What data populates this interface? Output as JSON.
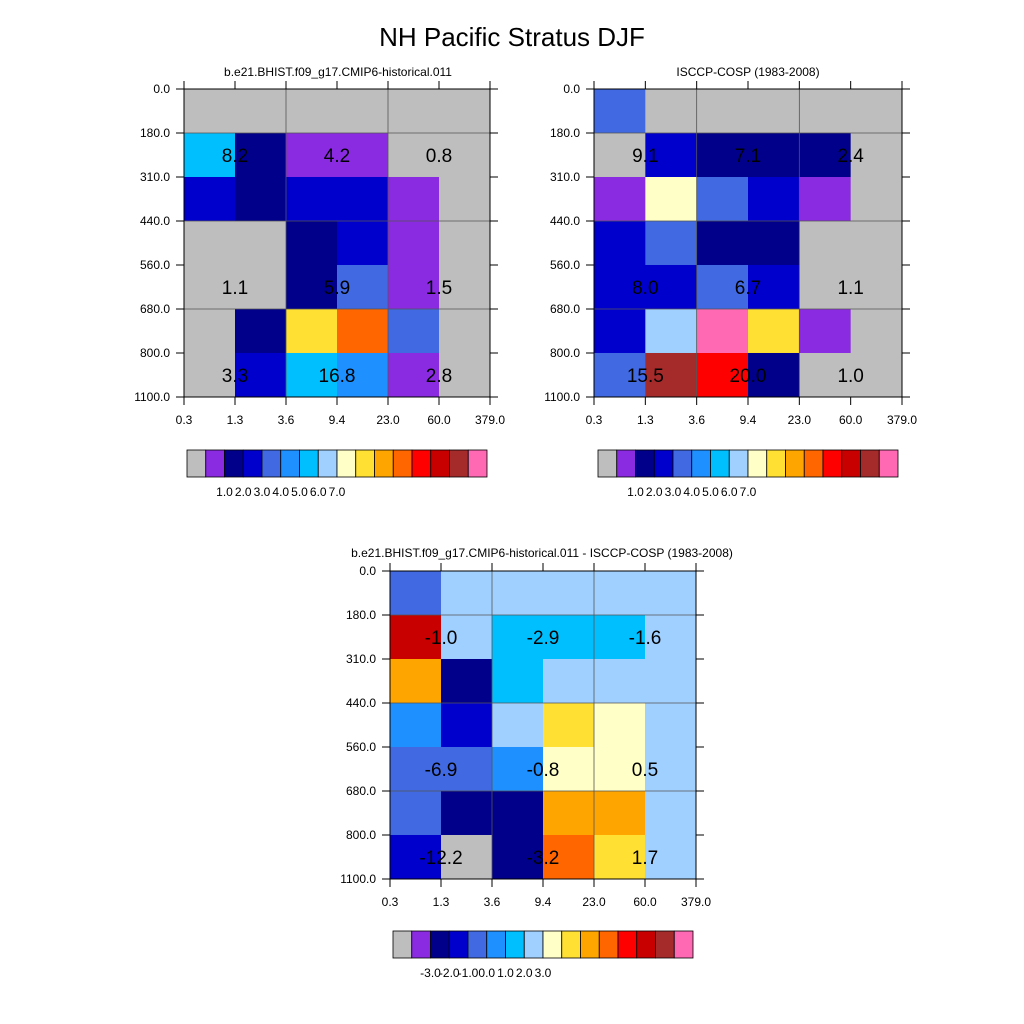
{
  "figure": {
    "title": "NH Pacific Stratus DJF"
  },
  "palette": {
    "gray": "#bebebe",
    "violet": "#8a2be2",
    "navy": "#00008b",
    "medium_blue": "#0000cd",
    "royal_blue": "#4169e1",
    "dodger_blue": "#1e90ff",
    "deep_sky_blue": "#00bfff",
    "light_sky_blue": "#a0d0ff",
    "light_yellow": "#ffffc8",
    "gold": "#ffe033",
    "orange": "#ffa500",
    "dark_orange": "#ff6600",
    "red": "#ff0000",
    "dark_red": "#c80000",
    "brown": "#a52a2a",
    "hot_pink": "#ff69b4"
  },
  "chart_data": [
    {
      "type": "heatmap",
      "id": "model",
      "title": "b.e21.BHIST.f09_g17.CMIP6-historical.011",
      "x_tick_labels": [
        "0.3",
        "1.3",
        "3.6",
        "9.4",
        "23.0",
        "60.0",
        "379.0"
      ],
      "y_tick_labels": [
        "0.0",
        "180.0",
        "310.0",
        "440.0",
        "560.0",
        "680.0",
        "800.0",
        "1100.0"
      ],
      "cells": [
        [
          "gray",
          "gray",
          "gray",
          "gray",
          "gray",
          "gray"
        ],
        [
          "deep_sky_blue",
          "navy",
          "violet",
          "violet",
          "gray",
          "gray"
        ],
        [
          "medium_blue",
          "navy",
          "medium_blue",
          "medium_blue",
          "violet",
          "gray"
        ],
        [
          "gray",
          "gray",
          "navy",
          "medium_blue",
          "violet",
          "gray"
        ],
        [
          "gray",
          "gray",
          "navy",
          "royal_blue",
          "violet",
          "gray"
        ],
        [
          "gray",
          "navy",
          "gold",
          "dark_orange",
          "royal_blue",
          "gray"
        ],
        [
          "gray",
          "medium_blue",
          "deep_sky_blue",
          "dodger_blue",
          "violet",
          "gray"
        ]
      ],
      "labels": [
        {
          "text": "8.2",
          "row": 1,
          "col": 0
        },
        {
          "text": "4.2",
          "row": 1,
          "col": 2
        },
        {
          "text": "0.8",
          "row": 1,
          "col": 4
        },
        {
          "text": "1.1",
          "row": 4,
          "col": 0
        },
        {
          "text": "5.9",
          "row": 4,
          "col": 2
        },
        {
          "text": "1.5",
          "row": 4,
          "col": 4
        },
        {
          "text": "3.3",
          "row": 6,
          "col": 0
        },
        {
          "text": "16.8",
          "row": 6,
          "col": 2
        },
        {
          "text": "2.8",
          "row": 6,
          "col": 4
        }
      ],
      "colorbar": {
        "colors": [
          "gray",
          "violet",
          "navy",
          "medium_blue",
          "royal_blue",
          "dodger_blue",
          "deep_sky_blue",
          "light_sky_blue",
          "light_yellow",
          "gold",
          "orange",
          "dark_orange",
          "red",
          "dark_red",
          "brown",
          "hot_pink"
        ],
        "tick_labels": [
          "1.0",
          "2.0",
          "3.0",
          "4.0",
          "5.0",
          "6.0",
          "7.0"
        ]
      }
    },
    {
      "type": "heatmap",
      "id": "obs",
      "title": "ISCCP-COSP (1983-2008)",
      "x_tick_labels": [
        "0.3",
        "1.3",
        "3.6",
        "9.4",
        "23.0",
        "60.0",
        "379.0"
      ],
      "y_tick_labels": [
        "0.0",
        "180.0",
        "310.0",
        "440.0",
        "560.0",
        "680.0",
        "800.0",
        "1100.0"
      ],
      "cells": [
        [
          "royal_blue",
          "gray",
          "gray",
          "gray",
          "gray",
          "gray"
        ],
        [
          "gray",
          "medium_blue",
          "navy",
          "navy",
          "navy",
          "gray"
        ],
        [
          "violet",
          "light_yellow",
          "royal_blue",
          "medium_blue",
          "violet",
          "gray"
        ],
        [
          "medium_blue",
          "royal_blue",
          "navy",
          "navy",
          "gray",
          "gray"
        ],
        [
          "medium_blue",
          "medium_blue",
          "royal_blue",
          "medium_blue",
          "gray",
          "gray"
        ],
        [
          "medium_blue",
          "light_sky_blue",
          "hot_pink",
          "gold",
          "violet",
          "gray"
        ],
        [
          "royal_blue",
          "brown",
          "red",
          "navy",
          "gray",
          "gray"
        ]
      ],
      "labels": [
        {
          "text": "9.1",
          "row": 1,
          "col": 0
        },
        {
          "text": "7.1",
          "row": 1,
          "col": 2
        },
        {
          "text": "2.4",
          "row": 1,
          "col": 4
        },
        {
          "text": "8.0",
          "row": 4,
          "col": 0
        },
        {
          "text": "6.7",
          "row": 4,
          "col": 2
        },
        {
          "text": "1.1",
          "row": 4,
          "col": 4
        },
        {
          "text": "15.5",
          "row": 6,
          "col": 0
        },
        {
          "text": "20.0",
          "row": 6,
          "col": 2
        },
        {
          "text": "1.0",
          "row": 6,
          "col": 4
        }
      ],
      "colorbar": {
        "colors": [
          "gray",
          "violet",
          "navy",
          "medium_blue",
          "royal_blue",
          "dodger_blue",
          "deep_sky_blue",
          "light_sky_blue",
          "light_yellow",
          "gold",
          "orange",
          "dark_orange",
          "red",
          "dark_red",
          "brown",
          "hot_pink"
        ],
        "tick_labels": [
          "1.0",
          "2.0",
          "3.0",
          "4.0",
          "5.0",
          "6.0",
          "7.0"
        ]
      }
    },
    {
      "type": "heatmap",
      "id": "diff",
      "title": "b.e21.BHIST.f09_g17.CMIP6-historical.011 - ISCCP-COSP (1983-2008)",
      "x_tick_labels": [
        "0.3",
        "1.3",
        "3.6",
        "9.4",
        "23.0",
        "60.0",
        "379.0"
      ],
      "y_tick_labels": [
        "0.0",
        "180.0",
        "310.0",
        "440.0",
        "560.0",
        "680.0",
        "800.0",
        "1100.0"
      ],
      "cells": [
        [
          "royal_blue",
          "light_sky_blue",
          "light_sky_blue",
          "light_sky_blue",
          "light_sky_blue",
          "light_sky_blue"
        ],
        [
          "dark_red",
          "light_sky_blue",
          "deep_sky_blue",
          "deep_sky_blue",
          "deep_sky_blue",
          "light_sky_blue"
        ],
        [
          "orange",
          "navy",
          "deep_sky_blue",
          "light_sky_blue",
          "light_sky_blue",
          "light_sky_blue"
        ],
        [
          "dodger_blue",
          "medium_blue",
          "light_sky_blue",
          "gold",
          "light_yellow",
          "light_sky_blue"
        ],
        [
          "royal_blue",
          "royal_blue",
          "dodger_blue",
          "light_yellow",
          "light_yellow",
          "light_sky_blue"
        ],
        [
          "royal_blue",
          "navy",
          "navy",
          "orange",
          "orange",
          "light_sky_blue"
        ],
        [
          "medium_blue",
          "gray",
          "navy",
          "dark_orange",
          "gold",
          "light_sky_blue"
        ]
      ],
      "labels": [
        {
          "text": "-1.0",
          "row": 1,
          "col": 0
        },
        {
          "text": "-2.9",
          "row": 1,
          "col": 2
        },
        {
          "text": "-1.6",
          "row": 1,
          "col": 4
        },
        {
          "text": "-6.9",
          "row": 4,
          "col": 0
        },
        {
          "text": "-0.8",
          "row": 4,
          "col": 2
        },
        {
          "text": "0.5",
          "row": 4,
          "col": 4
        },
        {
          "text": "-12.2",
          "row": 6,
          "col": 0
        },
        {
          "text": "-3.2",
          "row": 6,
          "col": 2
        },
        {
          "text": "1.7",
          "row": 6,
          "col": 4
        }
      ],
      "colorbar": {
        "colors": [
          "gray",
          "violet",
          "navy",
          "medium_blue",
          "royal_blue",
          "dodger_blue",
          "deep_sky_blue",
          "light_sky_blue",
          "light_yellow",
          "gold",
          "orange",
          "dark_orange",
          "red",
          "dark_red",
          "brown",
          "hot_pink"
        ],
        "tick_labels": [
          "-3.0",
          "-2.0",
          "-1.0",
          "0.0",
          "1.0",
          "2.0",
          "3.0"
        ]
      }
    }
  ]
}
